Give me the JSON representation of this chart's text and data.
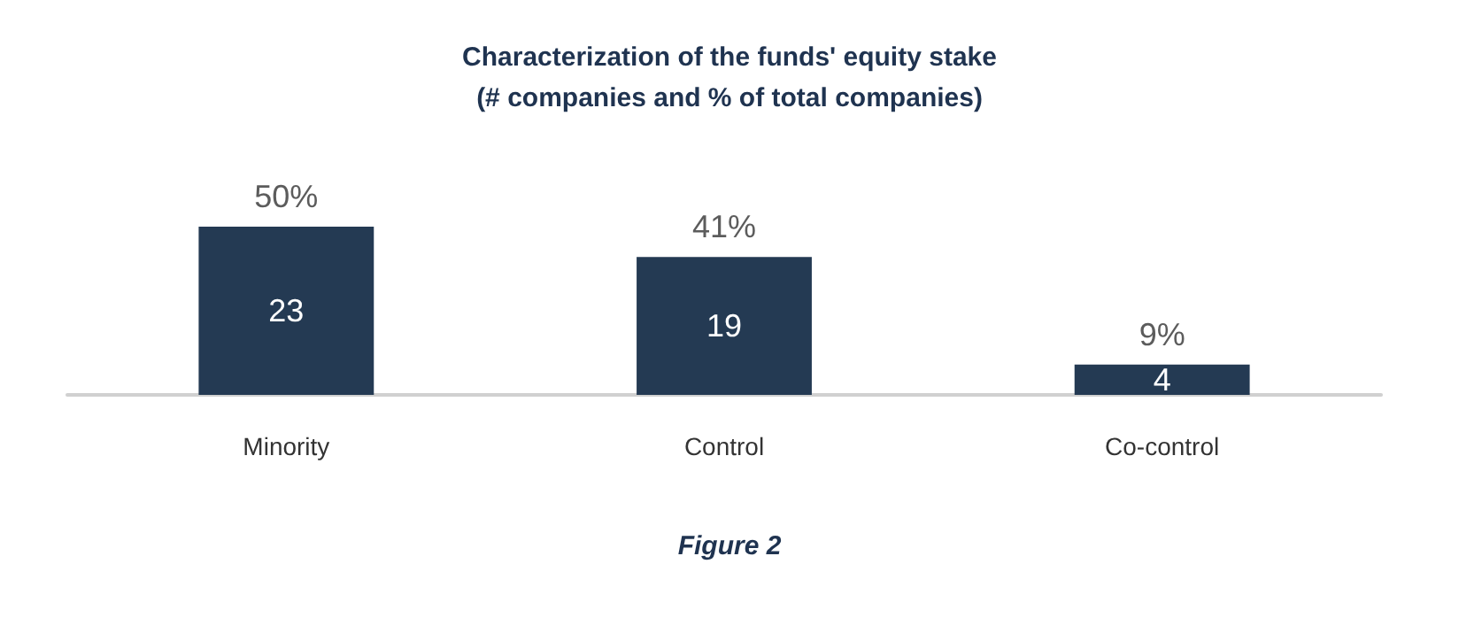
{
  "chart_data": {
    "type": "bar",
    "title": "Characterization of the funds' equity stake",
    "subtitle": "(# companies and % of total companies)",
    "categories": [
      "Minority",
      "Control",
      "Co-control"
    ],
    "values": [
      50,
      41,
      9
    ],
    "value_labels": [
      "50%",
      "41%",
      "9%"
    ],
    "color": "#243a53",
    "annotations": [
      "23",
      "19",
      "4",
      "Figure 2"
    ]
  }
}
